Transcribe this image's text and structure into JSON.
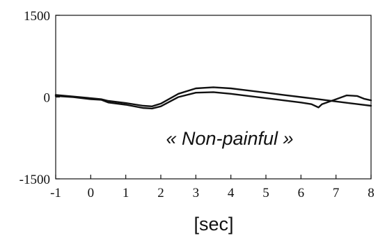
{
  "chart_data": {
    "type": "line",
    "title": "",
    "xlabel": "[sec]",
    "ylabel": "",
    "xlim": [
      -1,
      8
    ],
    "ylim": [
      -1500,
      1500
    ],
    "x_ticks": [
      -1,
      0,
      1,
      2,
      3,
      4,
      5,
      6,
      7,
      8
    ],
    "y_ticks": [
      1500,
      0,
      -1500
    ],
    "grid": false,
    "annotation": "« Non-painful »",
    "series": [
      {
        "x": [
          -1,
          -0.5,
          0,
          0.3,
          0.5,
          1,
          1.5,
          1.75,
          2,
          2.5,
          3,
          3.5,
          4,
          4.5,
          5,
          5.5,
          6,
          6.5,
          7,
          7.5,
          8
        ],
        "y": [
          40,
          10,
          -20,
          -40,
          -70,
          -110,
          -160,
          -170,
          -120,
          60,
          160,
          180,
          160,
          120,
          80,
          40,
          0,
          -40,
          -80,
          -120,
          -160
        ]
      },
      {
        "x": [
          -1,
          -0.5,
          0,
          0.3,
          0.5,
          1,
          1.5,
          1.75,
          2,
          2.5,
          3,
          3.5,
          4,
          4.5,
          5,
          5.5,
          6,
          6.3,
          6.5,
          6.6,
          7,
          7.3,
          7.6,
          7.8,
          8
        ],
        "y": [
          20,
          0,
          -40,
          -50,
          -100,
          -140,
          -200,
          -210,
          -170,
          0,
          80,
          90,
          60,
          20,
          -20,
          -60,
          -100,
          -130,
          -190,
          -130,
          -40,
          30,
          20,
          -30,
          -60
        ]
      }
    ]
  }
}
